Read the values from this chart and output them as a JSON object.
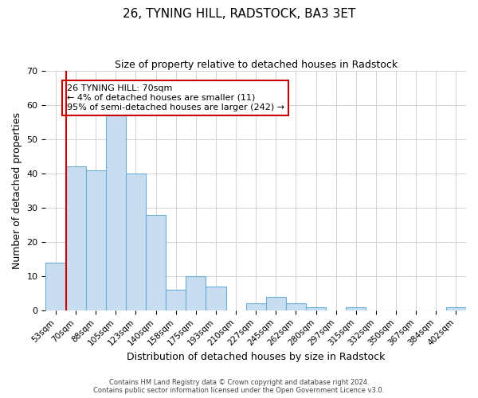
{
  "title": "26, TYNING HILL, RADSTOCK, BA3 3ET",
  "subtitle": "Size of property relative to detached houses in Radstock",
  "xlabel": "Distribution of detached houses by size in Radstock",
  "ylabel": "Number of detached properties",
  "bar_labels": [
    "53sqm",
    "70sqm",
    "88sqm",
    "105sqm",
    "123sqm",
    "140sqm",
    "158sqm",
    "175sqm",
    "193sqm",
    "210sqm",
    "227sqm",
    "245sqm",
    "262sqm",
    "280sqm",
    "297sqm",
    "315sqm",
    "332sqm",
    "350sqm",
    "367sqm",
    "384sqm",
    "402sqm"
  ],
  "bar_values": [
    14,
    42,
    41,
    57,
    40,
    28,
    6,
    10,
    7,
    0,
    2,
    4,
    2,
    1,
    0,
    1,
    0,
    0,
    0,
    0,
    1
  ],
  "bar_color": "#c9ddf0",
  "bar_edge_color": "#6aaed6",
  "ylim": [
    0,
    70
  ],
  "yticks": [
    0,
    10,
    20,
    30,
    40,
    50,
    60,
    70
  ],
  "vline_color": "#cc0000",
  "annotation_box_text": "26 TYNING HILL: 70sqm\n← 4% of detached houses are smaller (11)\n95% of semi-detached houses are larger (242) →",
  "annotation_box_color": "#cc0000",
  "footer_line1": "Contains HM Land Registry data © Crown copyright and database right 2024.",
  "footer_line2": "Contains public sector information licensed under the Open Government Licence v3.0.",
  "background_color": "#ffffff",
  "grid_color": "#cccccc"
}
